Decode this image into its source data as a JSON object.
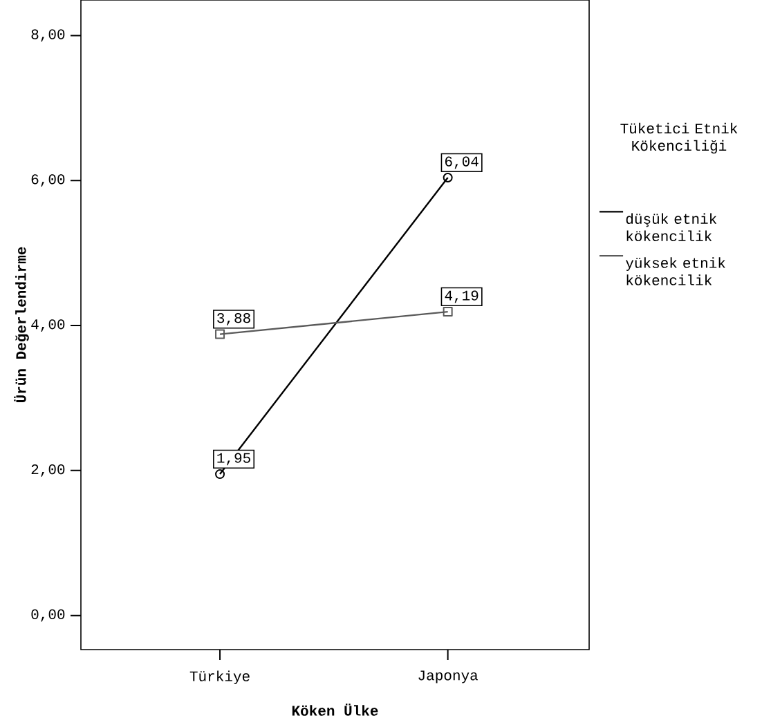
{
  "chart_data": {
    "type": "line",
    "xlabel": "Köken Ülke",
    "ylabel": "Ürün Değerlendirme",
    "legend_title": "Tüketici Etnik Kökenciliği",
    "categories": [
      "Türkiye",
      "Japonya"
    ],
    "series": [
      {
        "name": "düşük etnik kökencilik",
        "color": "#000000",
        "marker": "circle",
        "values": [
          1.95,
          6.04
        ],
        "value_labels": [
          "1,95",
          "6,04"
        ]
      },
      {
        "name": "yüksek etnik kökencilik",
        "color": "#5a5a5a",
        "marker": "square",
        "values": [
          3.88,
          4.19
        ],
        "value_labels": [
          "3,88",
          "4,19"
        ]
      }
    ],
    "ylim": [
      -0.47,
      8.49
    ],
    "yticks": [
      {
        "value": 0,
        "label": "0,00"
      },
      {
        "value": 2,
        "label": "2,00"
      },
      {
        "value": 4,
        "label": "4,00"
      },
      {
        "value": 6,
        "label": "6,00"
      },
      {
        "value": 8,
        "label": "8,00"
      }
    ],
    "grid": false,
    "legend": "right"
  }
}
